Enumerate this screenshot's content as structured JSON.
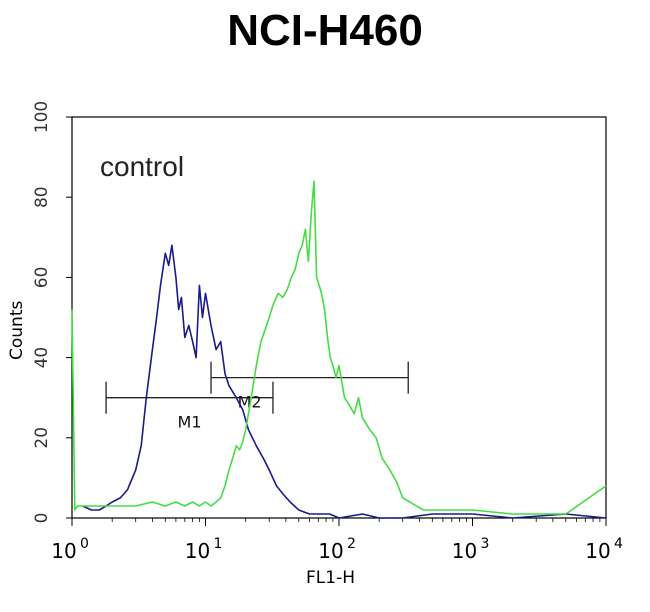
{
  "chart_data": {
    "type": "line",
    "title": "NCI-H460",
    "xlabel": "FL1-H",
    "ylabel": "Counts",
    "x_scale": "log",
    "xlim": [
      1,
      10000
    ],
    "ylim": [
      0,
      100
    ],
    "x_ticks": [
      {
        "base": "10",
        "exp": "0",
        "value": 1
      },
      {
        "base": "10",
        "exp": "1",
        "value": 10
      },
      {
        "base": "10",
        "exp": "2",
        "value": 100
      },
      {
        "base": "10",
        "exp": "3",
        "value": 1000
      },
      {
        "base": "10",
        "exp": "4",
        "value": 10000
      }
    ],
    "y_ticks": [
      "0",
      "20",
      "40",
      "60",
      "80",
      "100"
    ],
    "annotation": "control",
    "gates": [
      {
        "name": "M1",
        "x_start": 1.8,
        "x_end": 32,
        "y": 30
      },
      {
        "name": "M2",
        "x_start": 11,
        "x_end": 330,
        "y": 35
      }
    ],
    "series": [
      {
        "color": "#1a1a8c",
        "x": [
          1.2,
          1.4,
          1.6,
          1.8,
          2.0,
          2.3,
          2.6,
          3.0,
          3.3,
          3.6,
          4.0,
          4.3,
          4.6,
          5.0,
          5.3,
          5.6,
          6.0,
          6.3,
          6.6,
          7.0,
          7.5,
          8.0,
          8.5,
          9.0,
          9.5,
          10,
          11,
          12,
          13,
          14,
          15,
          17,
          19,
          21,
          24,
          27,
          30,
          34,
          38,
          43,
          50,
          60,
          70,
          85,
          100,
          150,
          200,
          300,
          500,
          1000,
          2000,
          5000,
          10000
        ],
        "values": [
          3,
          2,
          2,
          3,
          4,
          5,
          7,
          12,
          18,
          30,
          42,
          50,
          58,
          66,
          63,
          68,
          60,
          52,
          55,
          45,
          48,
          44,
          40,
          58,
          50,
          56,
          48,
          42,
          44,
          36,
          33,
          30,
          27,
          22,
          18,
          15,
          12,
          8,
          6,
          4,
          2,
          1,
          1,
          1,
          0,
          1,
          0,
          0,
          1,
          1,
          0,
          1,
          0
        ]
      },
      {
        "color": "#44dd44",
        "x": [
          1.0,
          1.05,
          1.1,
          1.3,
          1.6,
          2.0,
          3.0,
          4.0,
          5.0,
          6.0,
          7.0,
          8.0,
          9.0,
          10,
          11,
          12,
          13,
          14,
          15,
          16,
          17,
          18,
          19,
          20,
          22,
          24,
          26,
          28,
          30,
          32,
          35,
          38,
          41,
          44,
          47,
          50,
          53,
          56,
          59,
          62,
          65,
          68,
          71,
          74,
          78,
          82,
          86,
          90,
          95,
          100,
          110,
          120,
          130,
          140,
          150,
          170,
          190,
          210,
          240,
          270,
          300,
          340,
          380,
          430,
          500,
          600,
          800,
          1000,
          2000,
          5000,
          10000
        ],
        "values": [
          52,
          2,
          3,
          3,
          3,
          3,
          3,
          4,
          3,
          4,
          3,
          4,
          3,
          4,
          3,
          4,
          5,
          8,
          12,
          15,
          18,
          17,
          19,
          22,
          30,
          38,
          44,
          47,
          50,
          53,
          56,
          55,
          57,
          60,
          62,
          66,
          68,
          72,
          64,
          76,
          84,
          60,
          58,
          56,
          52,
          45,
          40,
          38,
          35,
          38,
          30,
          28,
          26,
          30,
          25,
          22,
          20,
          15,
          12,
          9,
          5,
          4,
          3,
          2,
          2,
          2,
          2,
          2,
          1,
          1,
          8
        ]
      }
    ]
  }
}
